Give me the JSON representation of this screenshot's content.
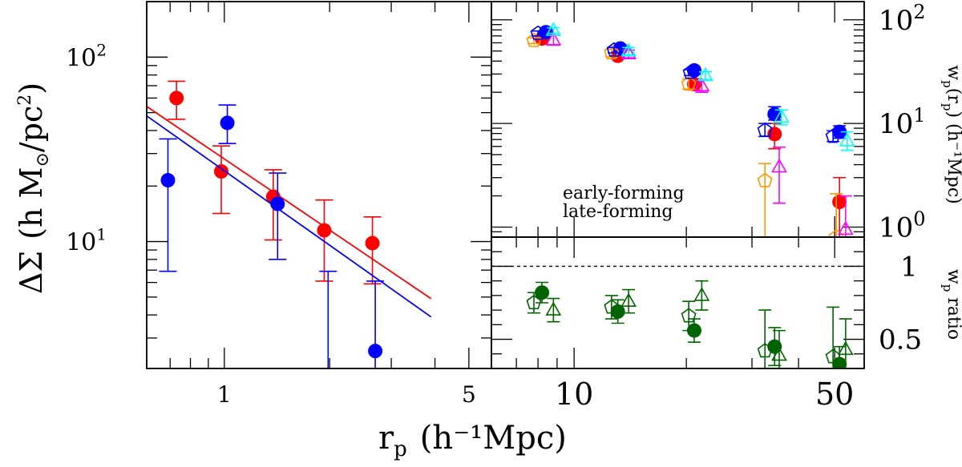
{
  "chart_data": [
    {
      "id": "lensing",
      "type": "scatter",
      "xlabel": "r",
      "xlabel_sub": "p",
      "xlabel_unit": "(h⁻¹Mpc)",
      "ylabel_main": "ΔΣ",
      "ylabel_unit": "(h M",
      "ylabel_sun": "⊙",
      "ylabel_tail": "/pc",
      "ylabel_sup": "2",
      "ylabel_close": ")",
      "x_log": true,
      "y_log": true,
      "xlim": [
        0.6,
        5.8
      ],
      "ylim": [
        2.05,
        200
      ],
      "x_ticks": [
        {
          "value": 1,
          "label": "1"
        },
        {
          "value": 5,
          "label": "5"
        }
      ],
      "y_ticks": [
        {
          "value": 10,
          "base": "10",
          "exp": "1"
        },
        {
          "value": 100,
          "base": "10",
          "exp": "2"
        }
      ],
      "series": [
        {
          "name": "early-forming",
          "color": "#ff0000",
          "points": [
            {
              "x": 0.73,
              "y": 60,
              "lo": 46,
              "hi": 74
            },
            {
              "x": 0.98,
              "y": 24,
              "lo": 14.2,
              "hi": 33
            },
            {
              "x": 1.38,
              "y": 17.5,
              "lo": 10.2,
              "hi": 24.5
            },
            {
              "x": 1.93,
              "y": 11.5,
              "lo": 6.1,
              "hi": 16.8
            },
            {
              "x": 2.65,
              "y": 9.8,
              "lo": 5.9,
              "hi": 13.6
            }
          ],
          "model": [
            {
              "x": 0.6,
              "y": 54
            },
            {
              "x": 3.9,
              "y": 4.9
            }
          ]
        },
        {
          "name": "late-forming",
          "color": "#0000ff",
          "points": [
            {
              "x": 0.69,
              "y": 21.5,
              "lo": 6.9,
              "hi": 36
            },
            {
              "x": 1.02,
              "y": 44,
              "lo": 34,
              "hi": 55
            },
            {
              "x": 1.42,
              "y": 16,
              "lo": 8.0,
              "hi": 23.5
            },
            {
              "x": 1.98,
              "y": 0,
              "lo": 0,
              "hi": 6.9
            },
            {
              "x": 2.7,
              "y": 2.55,
              "lo": 0,
              "hi": 6.1
            }
          ],
          "model": [
            {
              "x": 0.6,
              "y": 48
            },
            {
              "x": 3.9,
              "y": 3.9
            }
          ]
        }
      ]
    },
    {
      "id": "clustering",
      "type": "scatter",
      "ylabel": "w",
      "ylabel_sub": "p",
      "ylabel_mid": "(r",
      "ylabel_mid_sub": "p",
      "ylabel_unit": ") (h⁻¹Mpc)",
      "x_log": true,
      "y_log": true,
      "xlim": [
        6.0,
        60
      ],
      "ylim": [
        0.8,
        150
      ],
      "x_ticks": [
        {
          "value": 10,
          "label": "10"
        },
        {
          "value": 50,
          "label": "50"
        }
      ],
      "y_ticks": [
        {
          "value": 1,
          "base": "10",
          "exp": "0"
        },
        {
          "value": 10,
          "base": "10",
          "exp": "1"
        },
        {
          "value": 100,
          "base": "10",
          "exp": "2"
        }
      ],
      "legend": {
        "position": "center-left",
        "entries": [
          {
            "text": "early-forming",
            "color": "#ff0000"
          },
          {
            "text": "late-forming",
            "color": "#0000ff"
          }
        ]
      },
      "series": [
        {
          "marker": "filled-circle",
          "color": "#ff0000",
          "points": [
            {
              "x": 8.2,
              "y": 66,
              "lo": 62,
              "hi": 70
            },
            {
              "x": 13.1,
              "y": 45,
              "lo": 42,
              "hi": 48
            },
            {
              "x": 21.0,
              "y": 24,
              "lo": 21,
              "hi": 27
            },
            {
              "x": 34.5,
              "y": 7.9,
              "lo": 5.7,
              "hi": 10
            },
            {
              "x": 51.5,
              "y": 1.75,
              "lo": 0,
              "hi": 3
            }
          ]
        },
        {
          "marker": "filled-circle",
          "color": "#0000ff",
          "points": [
            {
              "x": 8.4,
              "y": 76,
              "lo": 71,
              "hi": 81
            },
            {
              "x": 13.3,
              "y": 53,
              "lo": 49,
              "hi": 57
            },
            {
              "x": 21.0,
              "y": 32.5,
              "lo": 30,
              "hi": 35
            },
            {
              "x": 34.5,
              "y": 12.3,
              "lo": 10.8,
              "hi": 14.5
            },
            {
              "x": 51.5,
              "y": 8.3,
              "lo": 7.2,
              "hi": 9.5
            }
          ]
        },
        {
          "marker": "open-pentagon",
          "color": "#ff9900",
          "points": [
            {
              "x": 7.8,
              "y": 63,
              "lo": 59,
              "hi": 67
            },
            {
              "x": 12.6,
              "y": 48,
              "lo": 44,
              "hi": 52
            },
            {
              "x": 20.3,
              "y": 24,
              "lo": 21.5,
              "hi": 27
            },
            {
              "x": 32.5,
              "y": 2.8,
              "lo": 0,
              "hi": 4.1
            },
            {
              "x": 50.5,
              "y": 0.8,
              "lo": 0,
              "hi": 2.1
            }
          ]
        },
        {
          "marker": "open-pentagon",
          "color": "#0000ff",
          "points": [
            {
              "x": 8.0,
              "y": 74,
              "lo": 70,
              "hi": 78
            },
            {
              "x": 12.8,
              "y": 51,
              "lo": 48,
              "hi": 54
            },
            {
              "x": 20.5,
              "y": 31,
              "lo": 29,
              "hi": 33
            },
            {
              "x": 32.5,
              "y": 8.6,
              "lo": 7.5,
              "hi": 10
            },
            {
              "x": 49.5,
              "y": 7.5,
              "lo": 6.7,
              "hi": 8.5
            }
          ]
        },
        {
          "marker": "open-triangle",
          "color": "#ff00ff",
          "points": [
            {
              "x": 8.8,
              "y": 64,
              "lo": 57,
              "hi": 71
            },
            {
              "x": 14.0,
              "y": 47,
              "lo": 43,
              "hi": 51
            },
            {
              "x": 22.0,
              "y": 23,
              "lo": 20,
              "hi": 26
            },
            {
              "x": 35.5,
              "y": 3.8,
              "lo": 1.7,
              "hi": 5.9
            },
            {
              "x": 53.5,
              "y": 0.95,
              "lo": 0,
              "hi": 2.0
            }
          ]
        },
        {
          "marker": "open-triangle",
          "color": "#00ffff",
          "points": [
            {
              "x": 8.8,
              "y": 79,
              "lo": 74,
              "hi": 84
            },
            {
              "x": 14.0,
              "y": 50,
              "lo": 46,
              "hi": 54
            },
            {
              "x": 22.5,
              "y": 29,
              "lo": 26.5,
              "hi": 31.5
            },
            {
              "x": 36.0,
              "y": 11.5,
              "lo": 9.7,
              "hi": 13.5
            },
            {
              "x": 54.0,
              "y": 6.8,
              "lo": 5.5,
              "hi": 8.3
            }
          ]
        }
      ]
    },
    {
      "id": "ratio",
      "type": "scatter",
      "ylabel": "w",
      "ylabel_sub": "p",
      "ylabel_tail": " ratio",
      "x_log": true,
      "xlim": [
        6.0,
        60
      ],
      "ylim": [
        0.3,
        1.2
      ],
      "y_ticks": [
        {
          "value": 1,
          "label": "1"
        },
        {
          "value": 0.5,
          "label": "0.5"
        }
      ],
      "reference_line": 1.0,
      "series": [
        {
          "marker": "filled-circle",
          "color": "#006400",
          "points": [
            {
              "x": 8.2,
              "y": 0.82,
              "lo": 0.75,
              "hi": 0.89
            },
            {
              "x": 13.1,
              "y": 0.69,
              "lo": 0.61,
              "hi": 0.77
            },
            {
              "x": 21.0,
              "y": 0.56,
              "lo": 0.48,
              "hi": 0.64
            },
            {
              "x": 34.5,
              "y": 0.45,
              "lo": 0.32,
              "hi": 0.58
            },
            {
              "x": 51.5,
              "y": 0.33,
              "lo": 0.21,
              "hi": 0.45
            }
          ]
        },
        {
          "marker": "open-pentagon",
          "color": "#006400",
          "points": [
            {
              "x": 7.8,
              "y": 0.75,
              "lo": 0.68,
              "hi": 0.82
            },
            {
              "x": 12.6,
              "y": 0.72,
              "lo": 0.64,
              "hi": 0.8
            },
            {
              "x": 20.3,
              "y": 0.66,
              "lo": 0.56,
              "hi": 0.76
            },
            {
              "x": 32.5,
              "y": 0.42,
              "lo": 0.3,
              "hi": 0.7
            },
            {
              "x": 49.5,
              "y": 0.38,
              "lo": 0.24,
              "hi": 0.72
            }
          ]
        },
        {
          "marker": "open-triangle",
          "color": "#006400",
          "points": [
            {
              "x": 8.8,
              "y": 0.7,
              "lo": 0.62,
              "hi": 0.78
            },
            {
              "x": 14.0,
              "y": 0.76,
              "lo": 0.68,
              "hi": 0.84
            },
            {
              "x": 22.0,
              "y": 0.8,
              "lo": 0.7,
              "hi": 0.9
            },
            {
              "x": 35.5,
              "y": 0.39,
              "lo": 0.22,
              "hi": 0.56
            },
            {
              "x": 53.5,
              "y": 0.43,
              "lo": 0.22,
              "hi": 0.64
            }
          ]
        }
      ]
    }
  ]
}
